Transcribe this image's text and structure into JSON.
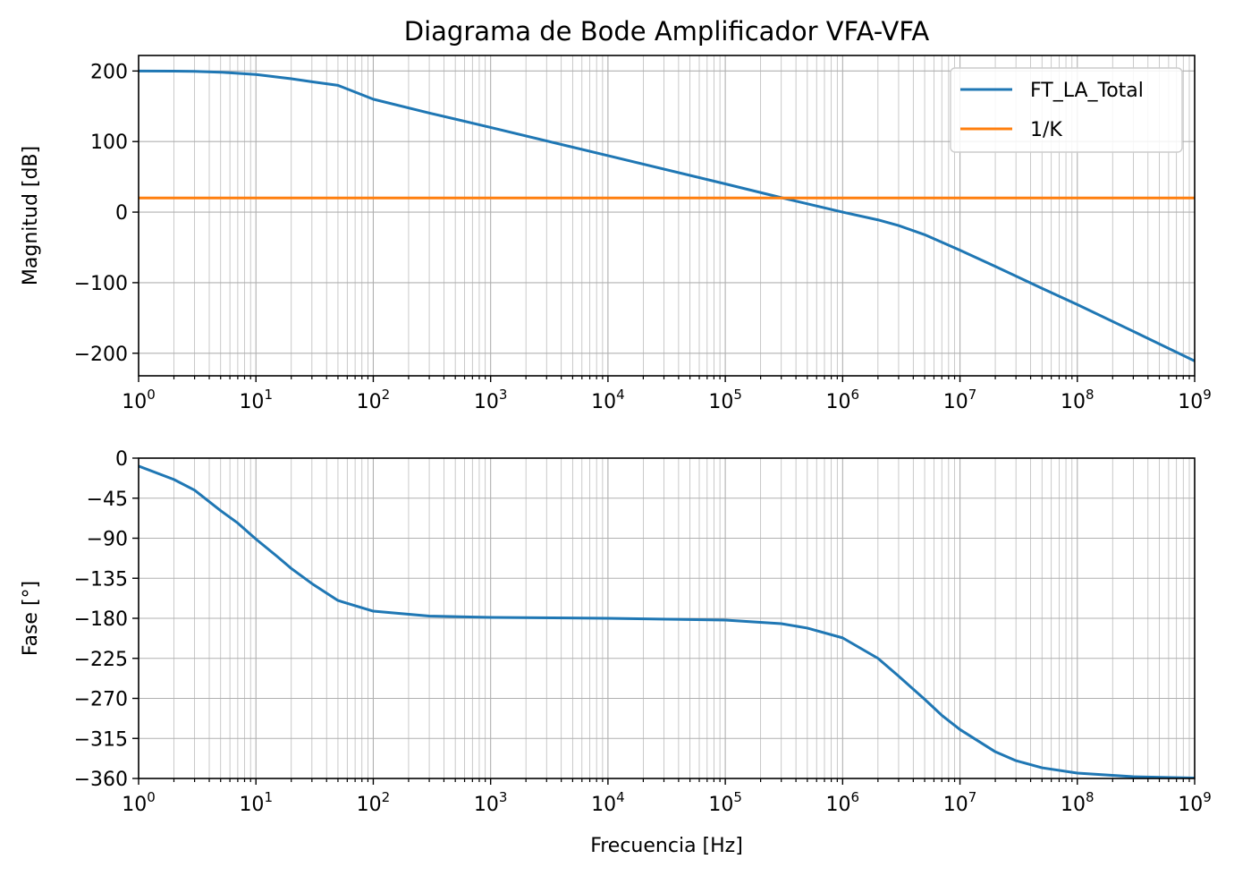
{
  "chart_data": [
    {
      "type": "line",
      "title": "Diagrama de Bode Amplificador VFA-VFA",
      "xlabel": "",
      "ylabel": "Magnitud [dB]",
      "xscale": "log",
      "xlim": [
        1,
        1000000000
      ],
      "ylim": [
        -232,
        222
      ],
      "xticks": [
        {
          "value": 1,
          "base": "10",
          "exp": "0"
        },
        {
          "value": 10,
          "base": "10",
          "exp": "1"
        },
        {
          "value": 100,
          "base": "10",
          "exp": "2"
        },
        {
          "value": 1000,
          "base": "10",
          "exp": "3"
        },
        {
          "value": 10000,
          "base": "10",
          "exp": "4"
        },
        {
          "value": 100000,
          "base": "10",
          "exp": "5"
        },
        {
          "value": 1000000,
          "base": "10",
          "exp": "6"
        },
        {
          "value": 10000000,
          "base": "10",
          "exp": "7"
        },
        {
          "value": 100000000,
          "base": "10",
          "exp": "8"
        },
        {
          "value": 1000000000,
          "base": "10",
          "exp": "9"
        }
      ],
      "yticks": [
        {
          "value": 200,
          "label": "200"
        },
        {
          "value": 100,
          "label": "100"
        },
        {
          "value": 0,
          "label": "0"
        },
        {
          "value": -100,
          "label": "−100"
        },
        {
          "value": -200,
          "label": "−200"
        }
      ],
      "grid": true,
      "legend": "upper-right",
      "series": [
        {
          "name": "FT_LA_Total",
          "color": "#1f77b4",
          "x": [
            1,
            2,
            3,
            5,
            10,
            20,
            30,
            50,
            100,
            300,
            1000,
            10000,
            100000,
            300000,
            1000000,
            2000000,
            3000000,
            5000000,
            10000000,
            20000000,
            50000000,
            100000000,
            300000000,
            1000000000
          ],
          "y": [
            200,
            199.8,
            199.5,
            198.3,
            195,
            189,
            184.8,
            179.7,
            160,
            140.5,
            120,
            80,
            40,
            20.5,
            0,
            -11,
            -19,
            -32,
            -54,
            -77,
            -108,
            -131,
            -169,
            -211
          ]
        },
        {
          "name": "1/K",
          "color": "#ff7f0e",
          "x": [
            1,
            1000000000
          ],
          "y": [
            20,
            20
          ]
        }
      ]
    },
    {
      "type": "line",
      "title": "",
      "xlabel": "Frecuencia [Hz]",
      "ylabel": "Fase [°]",
      "xscale": "log",
      "xlim": [
        1,
        1000000000
      ],
      "ylim": [
        -360,
        0
      ],
      "xticks": [
        {
          "value": 1,
          "base": "10",
          "exp": "0"
        },
        {
          "value": 10,
          "base": "10",
          "exp": "1"
        },
        {
          "value": 100,
          "base": "10",
          "exp": "2"
        },
        {
          "value": 1000,
          "base": "10",
          "exp": "3"
        },
        {
          "value": 10000,
          "base": "10",
          "exp": "4"
        },
        {
          "value": 100000,
          "base": "10",
          "exp": "5"
        },
        {
          "value": 1000000,
          "base": "10",
          "exp": "6"
        },
        {
          "value": 10000000,
          "base": "10",
          "exp": "7"
        },
        {
          "value": 100000000,
          "base": "10",
          "exp": "8"
        },
        {
          "value": 1000000000,
          "base": "10",
          "exp": "9"
        }
      ],
      "yticks": [
        {
          "value": 0,
          "label": "0"
        },
        {
          "value": -45,
          "label": "−45"
        },
        {
          "value": -90,
          "label": "−90"
        },
        {
          "value": -135,
          "label": "−135"
        },
        {
          "value": -180,
          "label": "−180"
        },
        {
          "value": -225,
          "label": "−225"
        },
        {
          "value": -270,
          "label": "−270"
        },
        {
          "value": -315,
          "label": "−315"
        },
        {
          "value": -360,
          "label": "−360"
        }
      ],
      "grid": true,
      "legend": "none",
      "series": [
        {
          "name": "",
          "color": "#1f77b4",
          "x": [
            1,
            2,
            3,
            5,
            7,
            10,
            15,
            20,
            30,
            50,
            100,
            300,
            1000,
            10000,
            100000,
            300000,
            500000,
            1000000,
            2000000,
            3000000,
            5000000,
            7000000,
            10000000,
            20000000,
            30000000,
            50000000,
            100000000,
            300000000,
            1000000000
          ],
          "y": [
            -9,
            -24,
            -36,
            -59,
            -73,
            -91,
            -110,
            -124,
            -141,
            -160,
            -172,
            -177.5,
            -179,
            -180,
            -182,
            -186,
            -191,
            -202,
            -225,
            -245,
            -271,
            -289,
            -305,
            -330,
            -340,
            -348,
            -354,
            -358,
            -359.5
          ]
        }
      ]
    }
  ]
}
